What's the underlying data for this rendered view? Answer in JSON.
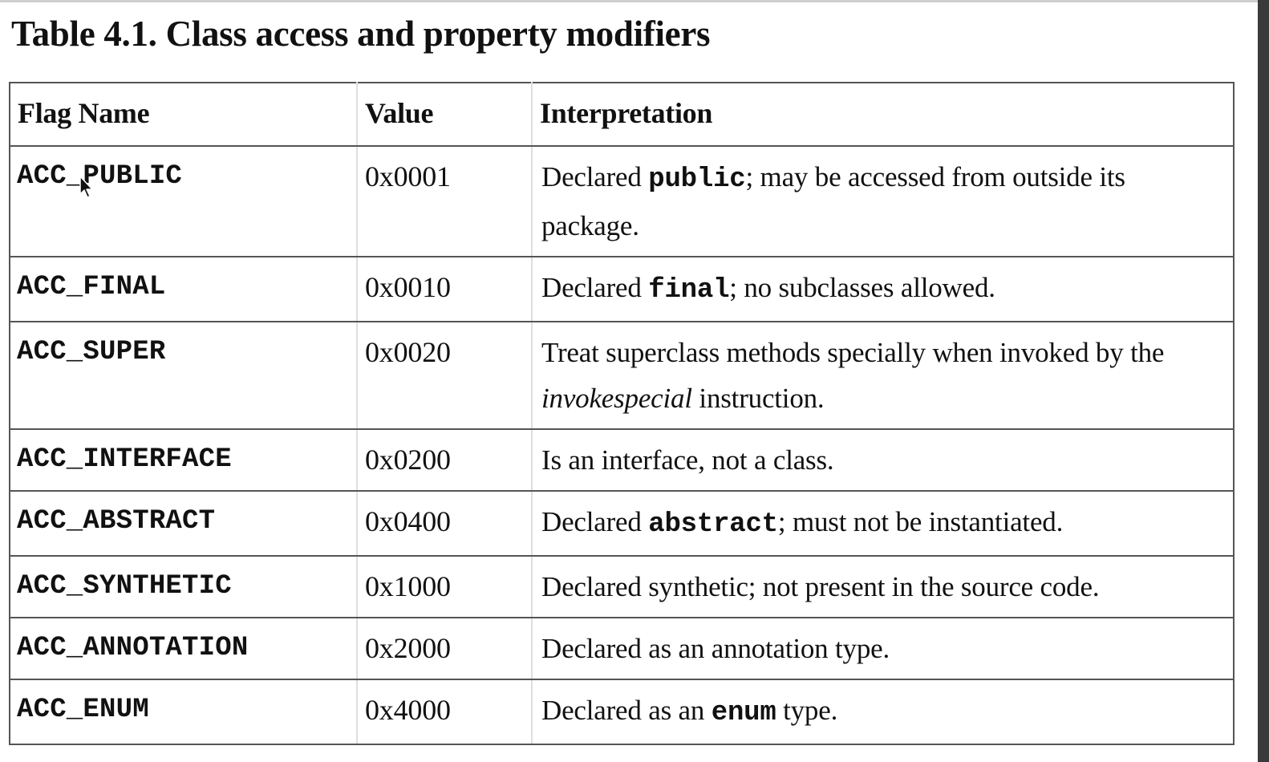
{
  "document": {
    "title": "Table 4.1. Class access and property modifiers",
    "table": {
      "headers": {
        "flag_name": "Flag Name",
        "value": "Value",
        "interpretation": "Interpretation"
      },
      "rows": [
        {
          "flag": "ACC_PUBLIC",
          "value": "0x0001",
          "interp_before": "Declared ",
          "interp_code": "public",
          "interp_after": "; may be accessed from outside its package."
        },
        {
          "flag": "ACC_FINAL",
          "value": "0x0010",
          "interp_before": "Declared ",
          "interp_code": "final",
          "interp_after": "; no subclasses allowed."
        },
        {
          "flag": "ACC_SUPER",
          "value": "0x0020",
          "interp_before": "Treat superclass methods specially when invoked by the ",
          "interp_italic": "invokespecial",
          "interp_after": " instruction."
        },
        {
          "flag": "ACC_INTERFACE",
          "value": "0x0200",
          "interp_text": "Is an interface, not a class."
        },
        {
          "flag": "ACC_ABSTRACT",
          "value": "0x0400",
          "interp_before": "Declared ",
          "interp_code": "abstract",
          "interp_after": "; must not be instantiated."
        },
        {
          "flag": "ACC_SYNTHETIC",
          "value": "0x1000",
          "interp_text": "Declared synthetic; not present in the source code."
        },
        {
          "flag": "ACC_ANNOTATION",
          "value": "0x2000",
          "interp_text": "Declared as an annotation type."
        },
        {
          "flag": "ACC_ENUM",
          "value": "0x4000",
          "interp_before": "Declared as an ",
          "interp_code": "enum",
          "interp_after": " type."
        }
      ]
    }
  },
  "icons": {
    "cursor": "mouse-pointer-icon"
  },
  "colors": {
    "text": "#111111",
    "grid": "#555555",
    "background": "#ffffff"
  }
}
